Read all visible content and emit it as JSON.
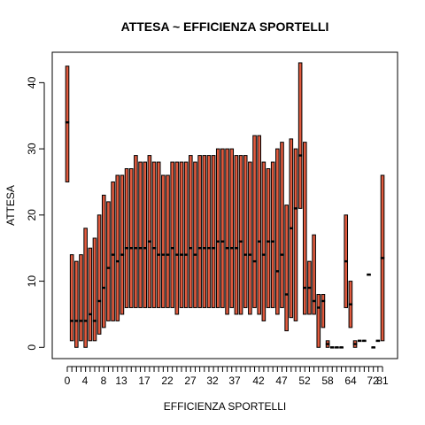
{
  "chart_data": {
    "type": "boxplot",
    "title": "ATTESA ~ EFFICIENZA SPORTELLI",
    "xlabel": "EFFICIENZA SPORTELLI",
    "ylabel": "ATTESA",
    "box_color": "#e05a3e",
    "ylim": [
      -1.7,
      44.6
    ],
    "yticks": [
      0,
      10,
      20,
      30,
      40
    ],
    "xtick_labels": [
      "0",
      "4",
      "8",
      "13",
      "17",
      "22",
      "27",
      "32",
      "37",
      "42",
      "47",
      "52",
      "58",
      "64",
      "72",
      "81"
    ],
    "boxes": [
      {
        "efficienza": 0,
        "q1": 25,
        "median": 34,
        "q3": 42.5
      },
      {
        "efficienza": 1,
        "q1": 1,
        "median": 4,
        "q3": 14
      },
      {
        "efficienza": 2,
        "q1": 0,
        "median": 4,
        "q3": 13
      },
      {
        "efficienza": 3,
        "q1": 1,
        "median": 4,
        "q3": 14
      },
      {
        "efficienza": 4,
        "q1": 0,
        "median": 4,
        "q3": 18
      },
      {
        "efficienza": 5,
        "q1": 1,
        "median": 5,
        "q3": 15
      },
      {
        "efficienza": 6,
        "q1": 1,
        "median": 4,
        "q3": 16.5
      },
      {
        "efficienza": 7,
        "q1": 2,
        "median": 7,
        "q3": 20
      },
      {
        "efficienza": 8,
        "q1": 3,
        "median": 9,
        "q3": 23
      },
      {
        "efficienza": 9,
        "q1": 4,
        "median": 12,
        "q3": 22
      },
      {
        "efficienza": 10,
        "q1": 4,
        "median": 14,
        "q3": 25
      },
      {
        "efficienza": 11,
        "q1": 4,
        "median": 13,
        "q3": 26
      },
      {
        "efficienza": 12,
        "q1": 5,
        "median": 14,
        "q3": 26
      },
      {
        "efficienza": 13,
        "q1": 6,
        "median": 15,
        "q3": 27
      },
      {
        "efficienza": 14,
        "q1": 6,
        "median": 15,
        "q3": 27
      },
      {
        "efficienza": 15,
        "q1": 6,
        "median": 15,
        "q3": 29
      },
      {
        "efficienza": 16,
        "q1": 6,
        "median": 15,
        "q3": 28
      },
      {
        "efficienza": 17,
        "q1": 6,
        "median": 15,
        "q3": 28
      },
      {
        "efficienza": 18,
        "q1": 6,
        "median": 16,
        "q3": 29
      },
      {
        "efficienza": 19,
        "q1": 6,
        "median": 15,
        "q3": 28
      },
      {
        "efficienza": 20,
        "q1": 6,
        "median": 14,
        "q3": 28
      },
      {
        "efficienza": 21,
        "q1": 6,
        "median": 14,
        "q3": 26
      },
      {
        "efficienza": 22,
        "q1": 6,
        "median": 14,
        "q3": 26
      },
      {
        "efficienza": 23,
        "q1": 6,
        "median": 15,
        "q3": 28
      },
      {
        "efficienza": 24,
        "q1": 5,
        "median": 14,
        "q3": 28
      },
      {
        "efficienza": 25,
        "q1": 6,
        "median": 14,
        "q3": 28
      },
      {
        "efficienza": 26,
        "q1": 6,
        "median": 14,
        "q3": 28
      },
      {
        "efficienza": 27,
        "q1": 6,
        "median": 15,
        "q3": 29
      },
      {
        "efficienza": 28,
        "q1": 6,
        "median": 14,
        "q3": 28
      },
      {
        "efficienza": 29,
        "q1": 6,
        "median": 15,
        "q3": 29
      },
      {
        "efficienza": 30,
        "q1": 6,
        "median": 15,
        "q3": 29
      },
      {
        "efficienza": 31,
        "q1": 6,
        "median": 15,
        "q3": 29
      },
      {
        "efficienza": 32,
        "q1": 6,
        "median": 15,
        "q3": 29
      },
      {
        "efficienza": 33,
        "q1": 6,
        "median": 16,
        "q3": 30
      },
      {
        "efficienza": 34,
        "q1": 6,
        "median": 16,
        "q3": 30
      },
      {
        "efficienza": 35,
        "q1": 5,
        "median": 15,
        "q3": 30
      },
      {
        "efficienza": 36,
        "q1": 6,
        "median": 15,
        "q3": 30
      },
      {
        "efficienza": 37,
        "q1": 5,
        "median": 15,
        "q3": 29
      },
      {
        "efficienza": 38,
        "q1": 5,
        "median": 16,
        "q3": 29
      },
      {
        "efficienza": 39,
        "q1": 6,
        "median": 14,
        "q3": 29
      },
      {
        "efficienza": 40,
        "q1": 5,
        "median": 14,
        "q3": 28
      },
      {
        "efficienza": 41,
        "q1": 6,
        "median": 13,
        "q3": 32
      },
      {
        "efficienza": 42,
        "q1": 5,
        "median": 16,
        "q3": 32
      },
      {
        "efficienza": 43,
        "q1": 4,
        "median": 14,
        "q3": 28
      },
      {
        "efficienza": 44,
        "q1": 6,
        "median": 16,
        "q3": 27
      },
      {
        "efficienza": 45,
        "q1": 6,
        "median": 16,
        "q3": 28
      },
      {
        "efficienza": 46,
        "q1": 5,
        "median": 11.5,
        "q3": 30
      },
      {
        "efficienza": 47,
        "q1": 6,
        "median": 14,
        "q3": 31
      },
      {
        "efficienza": 48,
        "q1": 2.5,
        "median": 8,
        "q3": 21.5
      },
      {
        "efficienza": 49,
        "q1": 4.5,
        "median": 18,
        "q3": 31.5
      },
      {
        "efficienza": 50,
        "q1": 4,
        "median": 21,
        "q3": 30
      },
      {
        "efficienza": 51,
        "q1": 21,
        "median": 29,
        "q3": 43
      },
      {
        "efficienza": 52,
        "q1": 5,
        "median": 9,
        "q3": 31
      },
      {
        "efficienza": 53,
        "q1": 5,
        "median": 9,
        "q3": 13
      },
      {
        "efficienza": 54,
        "q1": 5,
        "median": 7,
        "q3": 17
      },
      {
        "efficienza": 55,
        "q1": 0,
        "median": 6,
        "q3": 8
      },
      {
        "efficienza": 56,
        "q1": 3,
        "median": 7,
        "q3": 8
      },
      {
        "efficienza": 58,
        "q1": 0,
        "median": 0.5,
        "q3": 1
      },
      {
        "efficienza": 59,
        "q1": 0,
        "median": 0,
        "q3": 0
      },
      {
        "efficienza": 60,
        "q1": 0,
        "median": 0,
        "q3": 0
      },
      {
        "efficienza": 62,
        "q1": 0,
        "median": 0,
        "q3": 0
      },
      {
        "efficienza": 63,
        "q1": 6,
        "median": 13,
        "q3": 20
      },
      {
        "efficienza": 64,
        "q1": 3,
        "median": 6.5,
        "q3": 10
      },
      {
        "efficienza": 66,
        "q1": 0,
        "median": 0.5,
        "q3": 1
      },
      {
        "efficienza": 68,
        "q1": 1,
        "median": 1,
        "q3": 1
      },
      {
        "efficienza": 70,
        "q1": 1,
        "median": 1,
        "q3": 1
      },
      {
        "efficienza": 74,
        "q1": 11,
        "median": 11,
        "q3": 11
      },
      {
        "efficienza": 78,
        "q1": 0,
        "median": 0,
        "q3": 0
      },
      {
        "efficienza": 79,
        "q1": 1,
        "median": 1,
        "q3": 1
      },
      {
        "efficienza": 81,
        "q1": 1,
        "median": 13.5,
        "q3": 26
      }
    ]
  }
}
